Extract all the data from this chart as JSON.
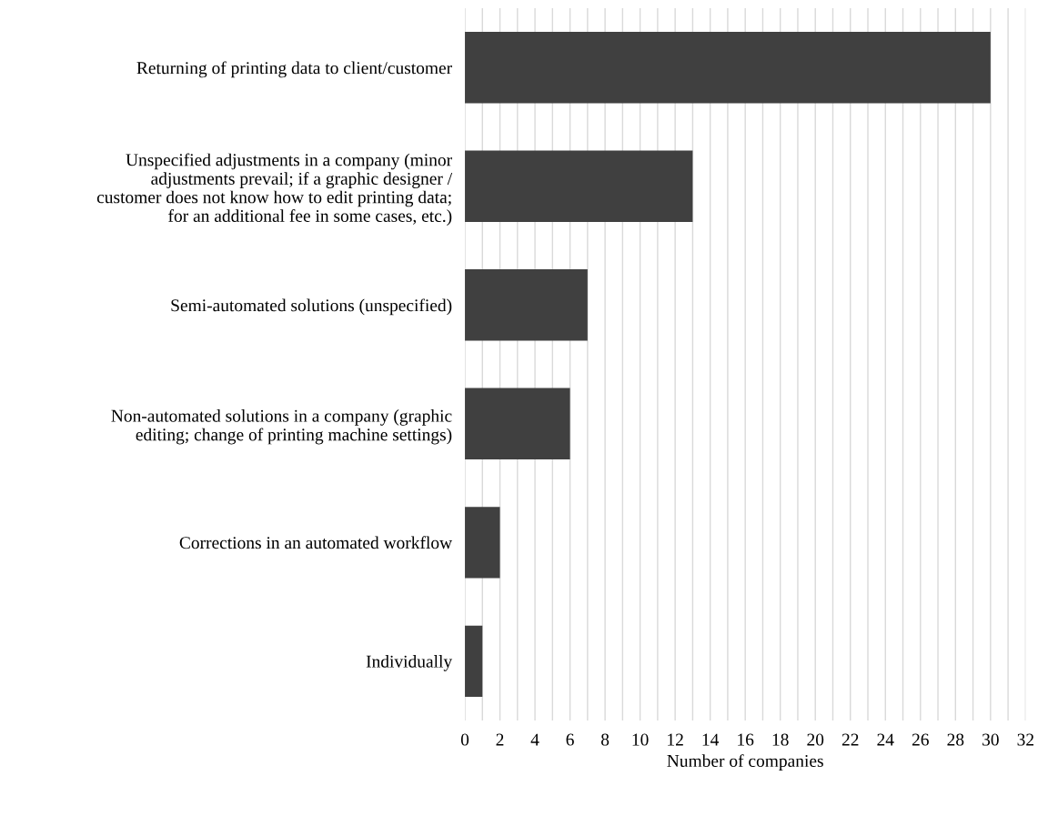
{
  "chart_data": {
    "type": "bar",
    "orientation": "horizontal",
    "xlabel": "Number of companies",
    "categories": [
      "Returning of printing data to client/customer",
      "Unspecified adjustments in a company (minor\nadjustments prevail; if a graphic designer /\ncustomer does not know how to edit printing data;\nfor an additional fee in some cases, etc.)",
      "Semi-automated solutions (unspecified)",
      "Non-automated solutions in a company (graphic\nediting; change of printing machine settings)",
      "Corrections in an automated workflow",
      "Individually"
    ],
    "values": [
      30,
      13,
      7,
      6,
      2,
      1
    ],
    "color": "#404040",
    "xlim": [
      0,
      32
    ],
    "xticks": [
      0,
      {
        "value": 1,
        "label": null
      },
      2,
      {
        "value": 3,
        "label": null
      },
      4,
      {
        "value": 5,
        "label": null
      },
      6,
      {
        "value": 7,
        "label": null
      },
      8,
      {
        "value": 9,
        "label": null
      },
      10,
      {
        "value": 11,
        "label": null
      },
      12,
      {
        "value": 13,
        "label": null
      },
      14,
      {
        "value": 15,
        "label": null
      },
      16,
      {
        "value": 17,
        "label": null
      },
      18,
      {
        "value": 19,
        "label": null
      },
      20,
      {
        "value": 21,
        "label": null
      },
      22,
      {
        "value": 23,
        "label": null
      },
      24,
      {
        "value": 25,
        "label": null
      },
      26,
      {
        "value": 27,
        "label": null
      },
      28,
      {
        "value": 29,
        "label": null
      },
      30,
      {
        "value": 31,
        "label": null
      },
      32
    ],
    "grid": "x"
  }
}
